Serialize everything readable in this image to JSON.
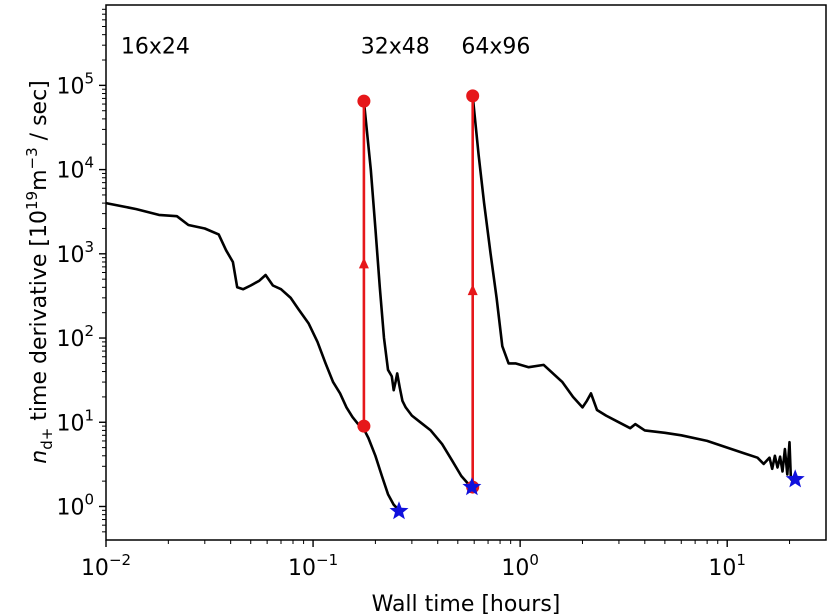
{
  "chart_data": {
    "type": "line",
    "xscale": "log",
    "yscale": "log",
    "xlim": [
      0.01,
      30
    ],
    "ylim": [
      0.4,
      900000
    ],
    "xlabel": "Wall time [hours]",
    "ylabel": {
      "base": "n",
      "sub": "d+",
      "rest": " time derivative [10",
      "sup_19": "19",
      "units": "m",
      "sup_m3": "−3",
      "tail": " / sec]"
    },
    "xticks": [
      {
        "value": 0.01,
        "base": "10",
        "exp": "−2"
      },
      {
        "value": 0.1,
        "base": "10",
        "exp": "−1"
      },
      {
        "value": 1,
        "base": "10",
        "exp": "0"
      },
      {
        "value": 10,
        "base": "10",
        "exp": "1"
      }
    ],
    "yticks": [
      {
        "value": 1,
        "base": "10",
        "exp": "0"
      },
      {
        "value": 10,
        "base": "10",
        "exp": "1"
      },
      {
        "value": 100,
        "base": "10",
        "exp": "2"
      },
      {
        "value": 1000,
        "base": "10",
        "exp": "3"
      },
      {
        "value": 10000,
        "base": "10",
        "exp": "4"
      },
      {
        "value": 100000,
        "base": "10",
        "exp": "5"
      }
    ],
    "annotations": [
      {
        "text": "16x24",
        "x": 0.0118,
        "y": 240000
      },
      {
        "text": "32x48",
        "x": 0.17,
        "y": 240000
      },
      {
        "text": "64x96",
        "x": 0.52,
        "y": 240000
      }
    ],
    "series": [
      {
        "color": "#000000",
        "points": [
          [
            0.01,
            4000
          ],
          [
            0.014,
            3400
          ],
          [
            0.018,
            2900
          ],
          [
            0.022,
            2800
          ],
          [
            0.025,
            2200
          ],
          [
            0.03,
            2000
          ],
          [
            0.035,
            1700
          ],
          [
            0.038,
            1100
          ],
          [
            0.041,
            800
          ],
          [
            0.043,
            400
          ],
          [
            0.046,
            380
          ],
          [
            0.05,
            420
          ],
          [
            0.055,
            480
          ],
          [
            0.059,
            560
          ],
          [
            0.064,
            420
          ],
          [
            0.07,
            380
          ],
          [
            0.078,
            300
          ],
          [
            0.085,
            220
          ],
          [
            0.095,
            150
          ],
          [
            0.105,
            90
          ],
          [
            0.115,
            50
          ],
          [
            0.125,
            30
          ],
          [
            0.135,
            22
          ],
          [
            0.145,
            15
          ],
          [
            0.155,
            11.5
          ],
          [
            0.165,
            9.5
          ],
          [
            0.175,
            8.5
          ],
          [
            0.185,
            6.5
          ],
          [
            0.2,
            4
          ],
          [
            0.215,
            2.3
          ],
          [
            0.23,
            1.4
          ],
          [
            0.245,
            1.05
          ],
          [
            0.26,
            0.9
          ]
        ]
      },
      {
        "color": "#000000",
        "points": [
          [
            0.176,
            65000
          ],
          [
            0.19,
            10000
          ],
          [
            0.2,
            2000
          ],
          [
            0.21,
            400
          ],
          [
            0.22,
            100
          ],
          [
            0.23,
            42
          ],
          [
            0.24,
            35
          ],
          [
            0.245,
            24
          ],
          [
            0.25,
            30
          ],
          [
            0.255,
            38
          ],
          [
            0.262,
            26
          ],
          [
            0.27,
            18
          ],
          [
            0.28,
            15
          ],
          [
            0.3,
            12
          ],
          [
            0.33,
            10
          ],
          [
            0.37,
            8
          ],
          [
            0.42,
            5.5
          ],
          [
            0.47,
            3.5
          ],
          [
            0.52,
            2.3
          ],
          [
            0.58,
            1.7
          ]
        ]
      },
      {
        "color": "#000000",
        "points": [
          [
            0.59,
            75000
          ],
          [
            0.63,
            15000
          ],
          [
            0.67,
            4000
          ],
          [
            0.72,
            1000
          ],
          [
            0.77,
            300
          ],
          [
            0.82,
            80
          ],
          [
            0.88,
            50
          ],
          [
            0.95,
            50
          ],
          [
            1.1,
            45
          ],
          [
            1.3,
            48
          ],
          [
            1.6,
            30
          ],
          [
            1.8,
            20
          ],
          [
            2.0,
            15
          ],
          [
            2.1,
            18
          ],
          [
            2.2,
            22
          ],
          [
            2.35,
            14
          ],
          [
            2.6,
            12
          ],
          [
            3.0,
            10
          ],
          [
            3.4,
            8.5
          ],
          [
            3.6,
            9.5
          ],
          [
            4.0,
            8.0
          ],
          [
            5.0,
            7.5
          ],
          [
            6.0,
            7.0
          ],
          [
            8.0,
            6.0
          ],
          [
            10.0,
            5.0
          ],
          [
            12.0,
            4.3
          ],
          [
            14.0,
            3.8
          ],
          [
            15.0,
            3.2
          ],
          [
            16.0,
            3.8
          ],
          [
            16.5,
            2.8
          ],
          [
            17.0,
            4.0
          ],
          [
            17.5,
            2.9
          ],
          [
            18.0,
            3.9
          ],
          [
            18.5,
            2.6
          ],
          [
            19.0,
            4.8
          ],
          [
            19.5,
            2.4
          ],
          [
            20.0,
            5.8
          ],
          [
            20.3,
            2.1
          ],
          [
            20.8,
            2.0
          ],
          [
            21.2,
            2.2
          ]
        ]
      },
      {
        "color": "#e6171a",
        "points": [
          [
            0.176,
            9
          ],
          [
            0.176,
            65000
          ]
        ],
        "markers": [
          [
            0.176,
            9
          ],
          [
            0.176,
            65000
          ]
        ],
        "arrow": [
          0.176,
          750
        ]
      },
      {
        "color": "#e6171a",
        "points": [
          [
            0.59,
            1.7
          ],
          [
            0.59,
            75000
          ]
        ],
        "markers": [
          [
            0.59,
            1.7
          ],
          [
            0.59,
            75000
          ]
        ],
        "arrow": [
          0.59,
          360
        ]
      }
    ],
    "stars": {
      "color": "#1010dd",
      "points": [
        [
          0.26,
          0.88
        ],
        [
          0.585,
          1.7
        ],
        [
          21.3,
          2.1
        ]
      ]
    }
  }
}
